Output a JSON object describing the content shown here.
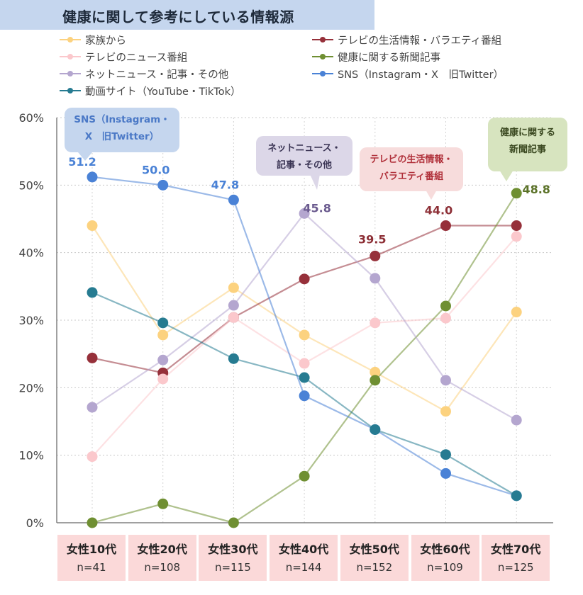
{
  "title": "健康に関して参考にしている情報源",
  "chart_data": {
    "type": "line",
    "categories": [
      "女性10代",
      "女性20代",
      "女性30代",
      "女性40代",
      "女性50代",
      "女性60代",
      "女性70代"
    ],
    "sample_sizes": [
      "n=41",
      "n=108",
      "n=115",
      "n=144",
      "n=152",
      "n=109",
      "n=125"
    ],
    "ylim": [
      0,
      60
    ],
    "yticks": [
      "0%",
      "10%",
      "20%",
      "30%",
      "40%",
      "50%",
      "60%"
    ],
    "ytick_values": [
      0,
      10,
      20,
      30,
      40,
      50,
      60
    ],
    "grid": "horizontal-dotted",
    "legend_position": "top",
    "series": [
      {
        "name": "家族から",
        "color": "#fcd27f",
        "values": [
          44.0,
          27.8,
          34.8,
          27.8,
          22.3,
          16.5,
          31.2
        ]
      },
      {
        "name": "テレビの生活情報・バラエティ番組",
        "color": "#96303a",
        "values": [
          24.4,
          22.2,
          30.4,
          36.1,
          39.5,
          44.0,
          44.0
        ]
      },
      {
        "name": "テレビのニュース番組",
        "color": "#fbc8cc",
        "values": [
          9.8,
          21.3,
          30.4,
          23.6,
          29.6,
          30.3,
          42.4
        ]
      },
      {
        "name": "健康に関する新聞記事",
        "color": "#6f8f32",
        "values": [
          0.0,
          2.8,
          0.0,
          6.9,
          21.1,
          32.1,
          48.8
        ]
      },
      {
        "name": "ネットニュース・記事・その他",
        "color": "#b4a6cf",
        "values": [
          17.1,
          24.1,
          32.2,
          45.8,
          36.2,
          21.1,
          15.2
        ]
      },
      {
        "name": "SNS（Instagram・X　旧Twitter）",
        "color": "#4a82d6",
        "values": [
          51.2,
          50.0,
          47.8,
          18.8,
          13.8,
          7.3,
          4.0
        ]
      },
      {
        "name": "動画サイト（YouTube・TikTok）",
        "color": "#267b91",
        "values": [
          34.1,
          29.6,
          24.3,
          21.5,
          13.8,
          10.1,
          4.0
        ]
      }
    ],
    "data_labels": [
      {
        "series": 5,
        "index": 0,
        "text": "51.2",
        "color": "#4a82d6"
      },
      {
        "series": 5,
        "index": 1,
        "text": "50.0",
        "color": "#4a82d6"
      },
      {
        "series": 5,
        "index": 2,
        "text": "47.8",
        "color": "#4a82d6"
      },
      {
        "series": 4,
        "index": 3,
        "text": "45.8",
        "color": "#6a5a8e"
      },
      {
        "series": 1,
        "index": 4,
        "text": "39.5",
        "color": "#8d2f36"
      },
      {
        "series": 1,
        "index": 5,
        "text": "44.0",
        "color": "#8d2f36"
      },
      {
        "series": 3,
        "index": 6,
        "text": "48.8",
        "color": "#5b7228"
      }
    ],
    "callouts": [
      {
        "lines": [
          "SNS（Instagram・",
          "X　旧Twitter）"
        ],
        "bg": "#c5d6ee",
        "color": "#4a78c6"
      },
      {
        "lines": [
          "ネットニュース・",
          "記事・その他"
        ],
        "bg": "#dcd7e8",
        "color": "#3a3454"
      },
      {
        "lines": [
          "テレビの生活情報・",
          "バラエティ番組"
        ],
        "bg": "#f7dcdc",
        "color": "#b0303a"
      },
      {
        "lines": [
          "健康に関する",
          "新聞記事"
        ],
        "bg": "#d7e4bf",
        "color": "#3c4a22"
      }
    ]
  }
}
